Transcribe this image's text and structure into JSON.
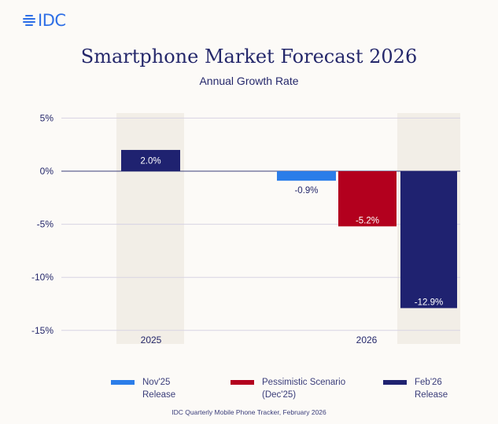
{
  "logo": {
    "text": "IDC"
  },
  "header": {
    "title": "Smartphone Market Forecast 2026",
    "subtitle": "Annual Growth Rate"
  },
  "chart_data": {
    "type": "bar",
    "title": "Smartphone Market Forecast 2026",
    "subtitle": "Annual Growth Rate",
    "categories": [
      "2025",
      "2026"
    ],
    "ylim": [
      -15,
      5
    ],
    "yticks": [
      5,
      0,
      -5,
      -10,
      -15
    ],
    "ytick_labels": [
      "5%",
      "0%",
      "-5%",
      "-10%",
      "-15%"
    ],
    "grid": true,
    "legend_position": "bottom",
    "bars": [
      {
        "category": "2025",
        "series": "Feb'26 Release",
        "value": 2.0,
        "label": "2.0%",
        "color": "#1f2270"
      },
      {
        "category": "2026",
        "series": "Nov'25 Release",
        "value": -0.9,
        "label": "-0.9%",
        "color": "#2b7de9"
      },
      {
        "category": "2026",
        "series": "Pessimistic Scenario (Dec'25)",
        "value": -5.2,
        "label": "-5.2%",
        "color": "#b3001e"
      },
      {
        "category": "2026",
        "series": "Feb'26 Release",
        "value": -12.9,
        "label": "-12.9%",
        "color": "#1f2270"
      }
    ],
    "legend": [
      {
        "line1": "Nov'25",
        "line2": "Release",
        "color": "#2b7de9"
      },
      {
        "line1": "Pessimistic Scenario",
        "line2": "(Dec'25)",
        "color": "#b3001e"
      },
      {
        "line1": "Feb'26",
        "line2": "Release",
        "color": "#1f2270"
      }
    ]
  },
  "source": "IDC Quarterly Mobile Phone Tracker, February 2026"
}
